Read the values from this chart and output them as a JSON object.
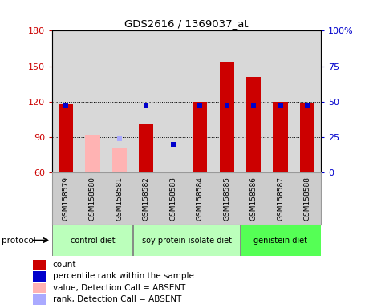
{
  "title": "GDS2616 / 1369037_at",
  "samples": [
    "GSM158579",
    "GSM158580",
    "GSM158581",
    "GSM158582",
    "GSM158583",
    "GSM158584",
    "GSM158585",
    "GSM158586",
    "GSM158587",
    "GSM158588"
  ],
  "count_values": [
    118,
    null,
    null,
    101,
    null,
    120,
    154,
    141,
    120,
    119
  ],
  "count_absent_values": [
    null,
    92,
    81,
    null,
    null,
    null,
    null,
    null,
    null,
    null
  ],
  "rank_values": [
    47,
    null,
    null,
    47,
    20,
    47,
    47,
    47,
    47,
    47
  ],
  "rank_absent_values": [
    null,
    null,
    24,
    null,
    null,
    null,
    null,
    null,
    null,
    null
  ],
  "ymin": 60,
  "ymax": 180,
  "yticks": [
    60,
    90,
    120,
    150,
    180
  ],
  "y2min": 0,
  "y2max": 100,
  "y2ticks": [
    0,
    25,
    50,
    75,
    100
  ],
  "count_color": "#cc0000",
  "count_absent_color": "#ffb3b3",
  "rank_color": "#0000cc",
  "rank_absent_color": "#aaaaff",
  "bar_width": 0.55,
  "rank_marker_size": 4,
  "group_data": [
    {
      "start": 0,
      "end": 2,
      "label": "control diet",
      "color": "#bbffbb"
    },
    {
      "start": 3,
      "end": 6,
      "label": "soy protein isolate diet",
      "color": "#bbffbb"
    },
    {
      "start": 7,
      "end": 9,
      "label": "genistein diet",
      "color": "#55ff55"
    }
  ],
  "protocol_label": "protocol",
  "grid_color": "#000000",
  "bg_color": "#ffffff",
  "plot_bg_color": "#d8d8d8",
  "tick_label_color_left": "#cc0000",
  "tick_label_color_right": "#0000cc",
  "legend_items": [
    {
      "color": "#cc0000",
      "label": "count"
    },
    {
      "color": "#0000cc",
      "label": "percentile rank within the sample"
    },
    {
      "color": "#ffb3b3",
      "label": "value, Detection Call = ABSENT"
    },
    {
      "color": "#aaaaff",
      "label": "rank, Detection Call = ABSENT"
    }
  ]
}
